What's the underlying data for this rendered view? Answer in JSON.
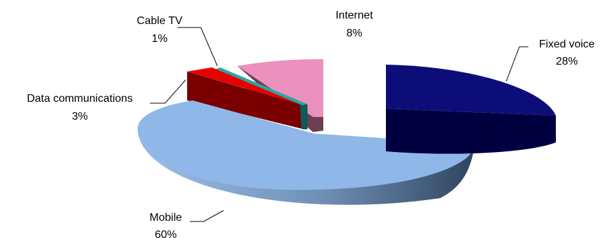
{
  "chart_data": {
    "type": "pie",
    "style": "3d-exploded",
    "slices": [
      {
        "name": "Fixed voice",
        "value": 28,
        "label": "28%",
        "color": "#0d0d7a"
      },
      {
        "name": "Mobile",
        "value": 60,
        "label": "60%",
        "color": "#8fb8e8"
      },
      {
        "name": "Data communications",
        "value": 3,
        "label": "3%",
        "color": "#e60000"
      },
      {
        "name": "Cable TV",
        "value": 1,
        "label": "1%",
        "color": "#2aa6a6"
      },
      {
        "name": "Internet",
        "value": 8,
        "label": "8%",
        "color": "#ec90bd"
      }
    ],
    "legend": "none"
  }
}
